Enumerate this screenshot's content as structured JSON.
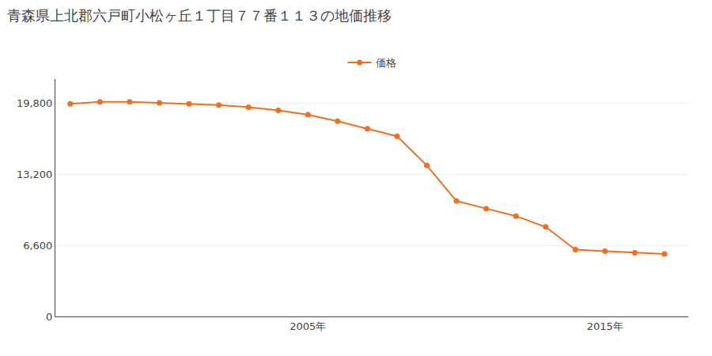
{
  "chart_data": {
    "type": "line",
    "title": "青森県上北郡六戸町小松ヶ丘１丁目７７番１１３の地価推移",
    "x": [
      1997,
      1998,
      1999,
      2000,
      2001,
      2002,
      2003,
      2004,
      2005,
      2006,
      2007,
      2008,
      2009,
      2010,
      2011,
      2012,
      2013,
      2014,
      2015,
      2016,
      2017
    ],
    "series": [
      {
        "name": "価格",
        "color": "#f07020",
        "marker": "circle",
        "values": [
          19700,
          19900,
          19900,
          19800,
          19700,
          19600,
          19400,
          19100,
          18700,
          18100,
          17400,
          16700,
          14000,
          10700,
          10000,
          9300,
          8300,
          6200,
          6050,
          5900,
          5800
        ]
      }
    ],
    "xlim": [
      1996.5,
      2017.8
    ],
    "xticks": [
      {
        "value": 2005,
        "label": "2005年"
      },
      {
        "value": 2015,
        "label": "2015年"
      }
    ],
    "ylim": [
      0,
      22000
    ],
    "yticks": [
      0,
      {
        "value": 6600,
        "label": "6,600"
      },
      {
        "value": 13200,
        "label": "13,200"
      },
      {
        "value": 19800,
        "label": "19,800"
      }
    ],
    "grid": "y",
    "legend": "upper center"
  }
}
